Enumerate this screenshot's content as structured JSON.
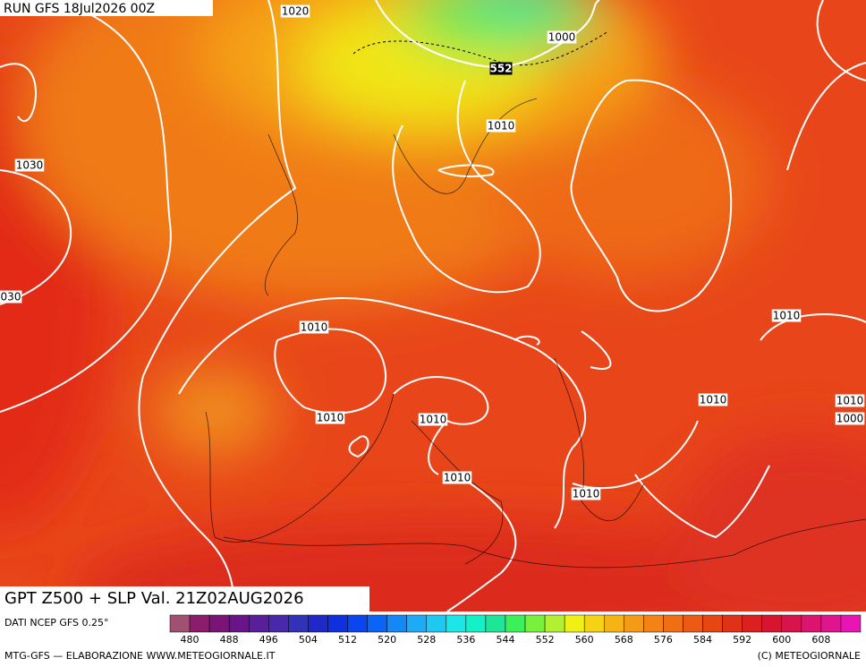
{
  "header": {
    "run": "RUN GFS 18Jul2026 00Z"
  },
  "map": {
    "isobar_labels": [
      "1020",
      "1000",
      "552",
      "1010",
      "1030",
      "030",
      "1010",
      "1010",
      "1010",
      "1010",
      "1010",
      "1010",
      "1000",
      "1010",
      "1010"
    ]
  },
  "footer": {
    "title": "GPT Z500 + SLP Val. 21Z02AUG2026",
    "source": "DATI NCEP GFS 0.25°",
    "credit": "MTG-GFS — ELABORAZIONE WWW.METEOGIORNALE.IT",
    "copyright": "(C) METEOGIORNALE"
  },
  "colorbar": {
    "colors": [
      "#a05070",
      "#8c1c6c",
      "#7c1478",
      "#6a148a",
      "#5a1e9a",
      "#4a28aa",
      "#3232b8",
      "#2028c8",
      "#1030e0",
      "#0a46f0",
      "#0a64f5",
      "#1488f5",
      "#1eaaf5",
      "#1ec8f0",
      "#1ee6e6",
      "#14f0c8",
      "#1ee696",
      "#3cf05a",
      "#78f03c",
      "#b4f032",
      "#f0f014",
      "#f5d214",
      "#f5b414",
      "#f59a14",
      "#f58214",
      "#f06e14",
      "#ec5a14",
      "#e64614",
      "#e03218",
      "#dc2020",
      "#d81430",
      "#d8144c",
      "#dc1470",
      "#e0148c",
      "#e814b4"
    ],
    "labels": [
      480,
      488,
      496,
      504,
      512,
      520,
      528,
      536,
      544,
      552,
      560,
      568,
      576,
      584,
      592,
      600,
      608
    ]
  }
}
